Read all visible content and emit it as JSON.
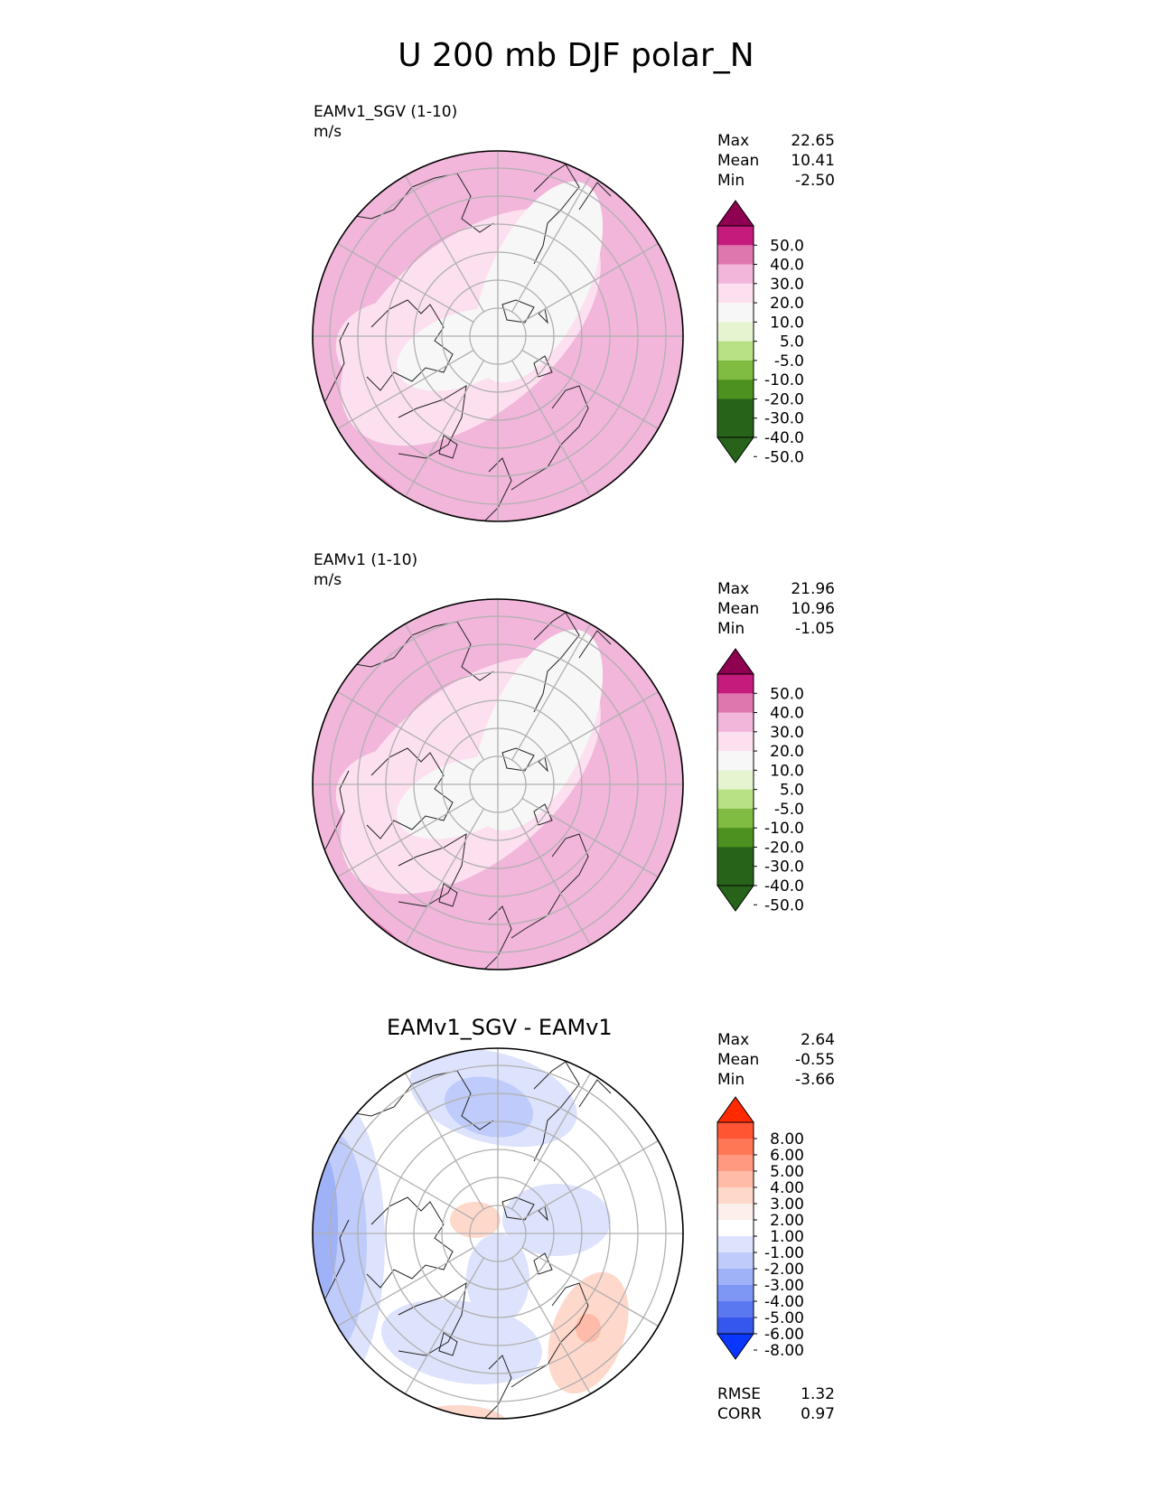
{
  "title": "U 200 mb DJF polar_N",
  "chart_data": [
    {
      "type": "heatmap",
      "projection": "north polar stereographic",
      "name": "EAMv1_SGV (1-10)",
      "units": "m/s",
      "stats": [
        [
          "Max",
          "22.65"
        ],
        [
          "Mean",
          "10.41"
        ],
        [
          "Min",
          "-2.50"
        ]
      ],
      "colorbar": {
        "labels": [
          "50.0",
          "40.0",
          "30.0",
          "20.0",
          "10.0",
          "5.0",
          "-5.0",
          "-10.0",
          "-20.0",
          "-30.0",
          "-40.0",
          "-50.0"
        ],
        "colors": [
          "#8e0152",
          "#c51b7d",
          "#de77ae",
          "#f1b6da",
          "#fde0ef",
          "#f7f7f7",
          "#e6f5d0",
          "#b8e186",
          "#7fbc41",
          "#4d9221",
          "#276419",
          "#276419",
          "#276419"
        ]
      },
      "field_colors": {
        "base": "#f1b6da",
        "mid": "#fde0ef",
        "low": "#f7f7f7",
        "high": "#de77ae"
      }
    },
    {
      "type": "heatmap",
      "projection": "north polar stereographic",
      "name": "EAMv1 (1-10)",
      "units": "m/s",
      "stats": [
        [
          "Max",
          "21.96"
        ],
        [
          "Mean",
          "10.96"
        ],
        [
          "Min",
          "-1.05"
        ]
      ],
      "colorbar": {
        "labels": [
          "50.0",
          "40.0",
          "30.0",
          "20.0",
          "10.0",
          "5.0",
          "-5.0",
          "-10.0",
          "-20.0",
          "-30.0",
          "-40.0",
          "-50.0"
        ],
        "colors": [
          "#8e0152",
          "#c51b7d",
          "#de77ae",
          "#f1b6da",
          "#fde0ef",
          "#f7f7f7",
          "#e6f5d0",
          "#b8e186",
          "#7fbc41",
          "#4d9221",
          "#276419",
          "#276419",
          "#276419"
        ]
      },
      "field_colors": {
        "base": "#f1b6da",
        "mid": "#fde0ef",
        "low": "#f7f7f7",
        "high": "#de77ae"
      }
    },
    {
      "type": "heatmap",
      "projection": "north polar stereographic",
      "name": "EAMv1_SGV - EAMv1",
      "stats": [
        [
          "Max",
          "2.64"
        ],
        [
          "Mean",
          "-0.55"
        ],
        [
          "Min",
          "-3.66"
        ]
      ],
      "colorbar": {
        "labels": [
          "8.00",
          "6.00",
          "5.00",
          "4.00",
          "3.00",
          "2.00",
          "1.00",
          "-1.00",
          "-2.00",
          "-3.00",
          "-4.00",
          "-5.00",
          "-6.00",
          "-8.00"
        ],
        "colors": [
          "#ff2a00",
          "#ff5533",
          "#ff7755",
          "#ff9a80",
          "#ffbba8",
          "#ffd8cc",
          "#fdf0ec",
          "#ffffff",
          "#dde3fc",
          "#bfcbfa",
          "#a0b2f7",
          "#7e97f4",
          "#5a79f0",
          "#3557ee",
          "#0a37ff"
        ]
      },
      "field_colors": {
        "base": "#ffffff",
        "blue1": "#dde3fc",
        "blue2": "#bfcbfa",
        "blue3": "#a0b2f7",
        "red1": "#ffd8cc",
        "red2": "#ffbba8"
      },
      "footer_stats": [
        [
          "RMSE",
          "1.32"
        ],
        [
          "CORR",
          "0.97"
        ]
      ]
    }
  ]
}
